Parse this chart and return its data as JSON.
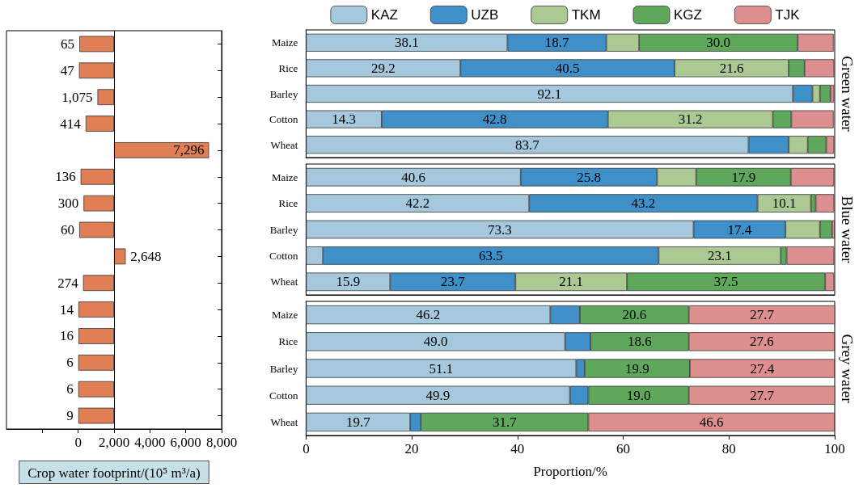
{
  "chart_data": [
    {
      "type": "bar",
      "orientation": "horizontal",
      "categories": [
        null,
        null,
        null,
        null,
        null,
        null,
        null,
        null,
        null,
        null,
        null,
        null,
        null,
        null,
        null
      ],
      "base": [
        2000,
        2000,
        2000,
        2000,
        2000,
        2000,
        2000,
        2000,
        2000,
        2000,
        2000,
        2000,
        2000,
        2000,
        2000
      ],
      "values": [
        -1935,
        -1953,
        -925,
        -1586,
        5296,
        -1864,
        -1700,
        -1940,
        648,
        -1726,
        -1986,
        -1984,
        -1994,
        -1994,
        -1991
      ],
      "value_labels": [
        "65",
        "47",
        "1,075",
        "414",
        "7,296",
        "136",
        "300",
        "60",
        "2,648",
        "274",
        "14",
        "16",
        "6",
        "6",
        "9"
      ],
      "color": "#e07f55",
      "xlim": [
        -4000,
        8000
      ],
      "xticks": [
        {
          "value": -2000,
          "label": null
        },
        0,
        {
          "value": 2000,
          "label": "2,000"
        },
        {
          "value": 4000,
          "label": "4,000"
        },
        {
          "value": 6000,
          "label": "6,000"
        },
        {
          "value": 8000,
          "label": "8,000"
        }
      ],
      "xlabel": "Crop water footprint/(10⁵ m³/a)",
      "tick_labels": "x",
      "ref_lines": [
        {
          "axis": "x",
          "value": 2000
        }
      ]
    },
    {
      "type": "bar",
      "orientation": "horizontal",
      "stacked": true,
      "title": "Green water",
      "categories": [
        "Maize",
        "Rice",
        "Barley",
        "Cotton",
        "Wheat"
      ],
      "xlim": [
        0,
        100
      ],
      "xticks": [
        0,
        20,
        40,
        60,
        80,
        100
      ],
      "tick_labels": "y",
      "legend": "top",
      "series": [
        {
          "name": "KAZ",
          "color": "#a6c8dc",
          "values": [
            38.1,
            29.2,
            92.1,
            14.3,
            83.7
          ],
          "value_labels": [
            "38.1",
            "29.2",
            "92.1",
            "14.3",
            "83.7"
          ]
        },
        {
          "name": "UZB",
          "color": "#3f8fc9",
          "values": [
            18.7,
            40.5,
            3.7,
            42.8,
            7.6
          ],
          "value_labels": [
            "18.7",
            "40.5",
            null,
            "42.8",
            null
          ]
        },
        {
          "name": "TKM",
          "color": "#acc994",
          "values": [
            6.2,
            21.6,
            1.4,
            31.2,
            3.6
          ],
          "value_labels": [
            null,
            "21.6",
            null,
            "31.2",
            null
          ]
        },
        {
          "name": "KGZ",
          "color": "#5fa85b",
          "values": [
            30.0,
            3.0,
            2.0,
            3.5,
            3.5
          ],
          "value_labels": [
            "30.0",
            null,
            null,
            null,
            null
          ]
        },
        {
          "name": "TJK",
          "color": "#dd8f8f",
          "values": [
            6.8,
            5.6,
            0.7,
            8.0,
            1.5
          ],
          "value_labels": [
            null,
            null,
            null,
            null,
            null
          ]
        }
      ]
    },
    {
      "type": "bar",
      "orientation": "horizontal",
      "stacked": true,
      "title": "Blue water",
      "categories": [
        "Maize",
        "Rice",
        "Barley",
        "Cotton",
        "Wheat"
      ],
      "xlim": [
        0,
        100
      ],
      "xticks": [
        0,
        20,
        40,
        60,
        80,
        100
      ],
      "tick_labels": "y",
      "series": [
        {
          "color": "#a6c8dc",
          "values": [
            40.6,
            42.2,
            73.3,
            3.2,
            15.9
          ],
          "value_labels": [
            "40.6",
            "42.2",
            "73.3",
            null,
            "15.9"
          ]
        },
        {
          "color": "#3f8fc9",
          "values": [
            25.8,
            43.2,
            17.4,
            63.5,
            23.7
          ],
          "value_labels": [
            "25.8",
            "43.2",
            "17.4",
            "63.5",
            "23.7"
          ]
        },
        {
          "color": "#acc994",
          "values": [
            7.4,
            10.1,
            6.5,
            23.1,
            21.1
          ],
          "value_labels": [
            null,
            "10.1",
            null,
            "23.1",
            "21.1"
          ]
        },
        {
          "color": "#5fa85b",
          "values": [
            17.9,
            0.9,
            2.3,
            1.1,
            37.5
          ],
          "value_labels": [
            "17.9",
            null,
            null,
            null,
            "37.5"
          ]
        },
        {
          "color": "#dd8f8f",
          "values": [
            8.2,
            3.5,
            0.5,
            9.0,
            1.7
          ],
          "value_labels": [
            null,
            null,
            null,
            null,
            null
          ]
        }
      ]
    },
    {
      "type": "bar",
      "orientation": "horizontal",
      "stacked": true,
      "title": "Grey water",
      "xlabel": "Proportion/%",
      "categories": [
        "Maize",
        "Rice",
        "Barley",
        "Cotton",
        "Wheat"
      ],
      "xlim": [
        0,
        100
      ],
      "xticks": [
        0,
        20,
        40,
        60,
        80,
        100
      ],
      "series": [
        {
          "color": "#a6c8dc",
          "values": [
            46.2,
            49.0,
            51.1,
            49.9,
            19.7
          ],
          "value_labels": [
            "46.2",
            "49.0",
            "51.1",
            "49.9",
            "19.7"
          ]
        },
        {
          "color": "#3f8fc9",
          "values": [
            5.6,
            4.8,
            1.6,
            3.5,
            2.0
          ],
          "value_labels": [
            null,
            null,
            null,
            null,
            null
          ]
        },
        {
          "color": "#acc994",
          "values": [
            null,
            null,
            null,
            null,
            null
          ],
          "value_labels": [
            null,
            null,
            null,
            null,
            null
          ]
        },
        {
          "color": "#5fa85b",
          "values": [
            20.6,
            18.6,
            19.9,
            19.0,
            31.7
          ],
          "value_labels": [
            "20.6",
            "18.6",
            "19.9",
            "19.0",
            "31.7"
          ]
        },
        {
          "color": "#dd8f8f",
          "values": [
            27.7,
            27.6,
            27.4,
            27.7,
            46.6
          ],
          "value_labels": [
            "27.7",
            "27.6",
            "27.4",
            "27.7",
            "46.6"
          ]
        }
      ]
    }
  ]
}
